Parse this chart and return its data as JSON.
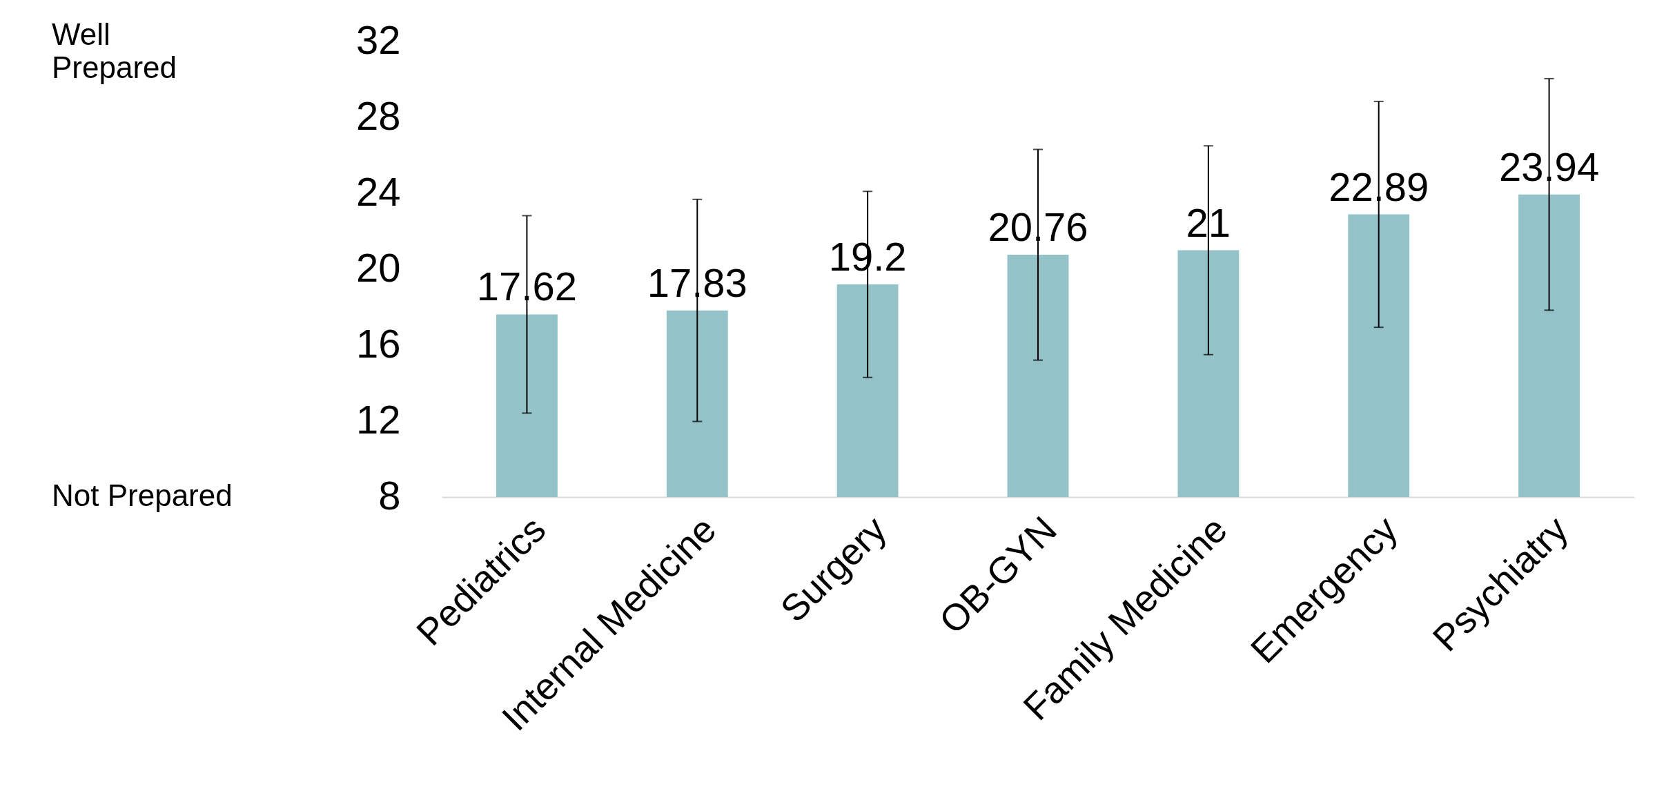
{
  "chart_data": {
    "type": "bar",
    "categories": [
      "Pediatrics",
      "Internal Medicine",
      "Surgery",
      "OB-GYN",
      "Family Medicine",
      "Emergency",
      "Psychiatry"
    ],
    "values": [
      17.62,
      17.83,
      19.2,
      20.76,
      21,
      22.89,
      23.94
    ],
    "errors": [
      5.2,
      5.85,
      4.9,
      5.55,
      5.5,
      5.95,
      6.1
    ],
    "color": "#93c3c8",
    "ylim": [
      8,
      32
    ],
    "yticks": [
      8,
      12,
      16,
      20,
      24,
      28,
      32
    ],
    "data_labels": true,
    "grid": false,
    "annotations": [
      "Well\nPrepared",
      "Not Prepared"
    ]
  }
}
